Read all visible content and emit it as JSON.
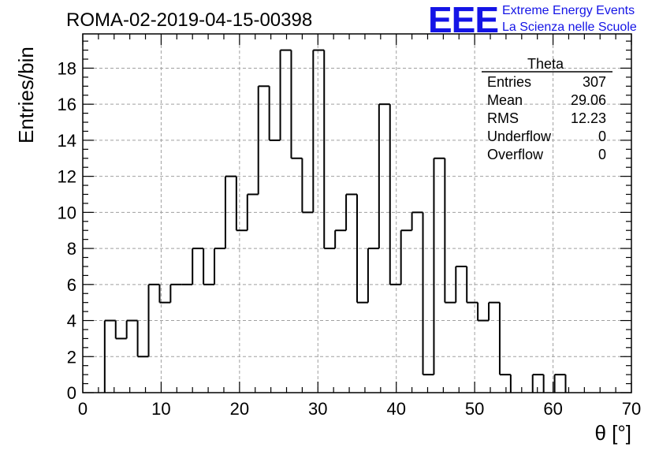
{
  "header": {
    "run_title": "ROMA-02-2019-04-15-00398",
    "logo_mark": "EEE",
    "logo_line1": "Extreme Energy Events",
    "logo_line2": "La Scienza nelle Scuole",
    "logo_color": "#1414e6"
  },
  "stats_box": {
    "title": "Theta",
    "rows": [
      {
        "label": "Entries",
        "value": "307"
      },
      {
        "label": "Mean",
        "value": "29.06"
      },
      {
        "label": "RMS",
        "value": "12.23"
      },
      {
        "label": "Underflow",
        "value": "0"
      },
      {
        "label": "Overflow",
        "value": "0"
      }
    ]
  },
  "chart_data": {
    "type": "histogram",
    "title": "ROMA-02-2019-04-15-00398",
    "xlabel": "θ [°]",
    "ylabel": "Entries/bin",
    "xlim": [
      0,
      70
    ],
    "ylim": [
      0,
      19.9
    ],
    "bin_width": 1.4,
    "bin_edges_start": 0,
    "x_ticks": [
      0,
      10,
      20,
      30,
      40,
      50,
      60,
      70
    ],
    "y_ticks": [
      0,
      2,
      4,
      6,
      8,
      10,
      12,
      14,
      16,
      18
    ],
    "grid": true,
    "line_color": "#000000",
    "values": [
      0,
      0,
      4,
      3,
      4,
      2,
      6,
      5,
      6,
      6,
      8,
      6,
      8,
      12,
      9,
      11,
      17,
      14,
      19,
      13,
      10,
      19,
      8,
      9,
      11,
      5,
      8,
      16,
      6,
      9,
      10,
      1,
      13,
      5,
      7,
      5,
      4,
      5,
      1,
      0,
      0,
      1,
      0,
      1,
      0,
      0,
      0,
      0,
      0,
      0
    ]
  }
}
